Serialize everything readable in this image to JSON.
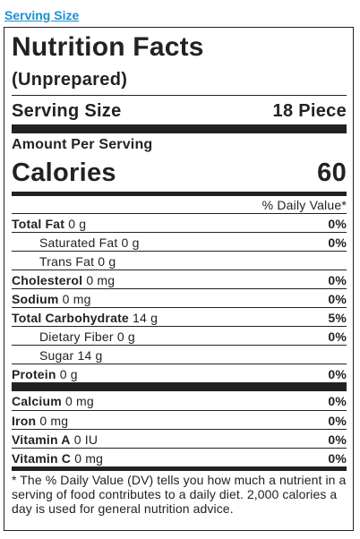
{
  "header": {
    "serving_size_link": "Serving Size"
  },
  "label": {
    "title": "Nutrition Facts",
    "subtitle": "(Unprepared)",
    "serving_size_label": "Serving Size",
    "serving_size_value": "18 Piece",
    "amount_per_serving": "Amount Per Serving",
    "calories_label": "Calories",
    "calories_value": "60",
    "daily_value_header": "% Daily Value*"
  },
  "nutrients": [
    {
      "name": "Total Fat",
      "amount": "0 g",
      "pct": "0%"
    },
    {
      "name": "Saturated Fat",
      "amount": "0 g",
      "pct": "0%"
    },
    {
      "name": "Trans Fat",
      "amount": "0 g",
      "pct": ""
    },
    {
      "name": "Cholesterol",
      "amount": "0 mg",
      "pct": "0%"
    },
    {
      "name": "Sodium",
      "amount": "0 mg",
      "pct": "0%"
    },
    {
      "name": "Total Carbohydrate",
      "amount": "14 g",
      "pct": "5%"
    },
    {
      "name": "Dietary Fiber",
      "amount": "0 g",
      "pct": "0%"
    },
    {
      "name": "Sugar",
      "amount": "14 g",
      "pct": ""
    },
    {
      "name": "Protein",
      "amount": "0 g",
      "pct": "0%"
    }
  ],
  "vitamins": [
    {
      "name": "Calcium",
      "amount": "0 mg",
      "pct": "0%"
    },
    {
      "name": "Iron",
      "amount": "0 mg",
      "pct": "0%"
    },
    {
      "name": "Vitamin A",
      "amount": "0 IU",
      "pct": "0%"
    },
    {
      "name": "Vitamin C",
      "amount": "0 mg",
      "pct": "0%"
    }
  ],
  "footnote": "* The % Daily Value (DV) tells you how much a nutrient in a serving of food contributes to a daily diet. 2,000 calories a day is used for general nutrition advice.",
  "colors": {
    "link": "#1a8fd0",
    "text": "#222222"
  }
}
